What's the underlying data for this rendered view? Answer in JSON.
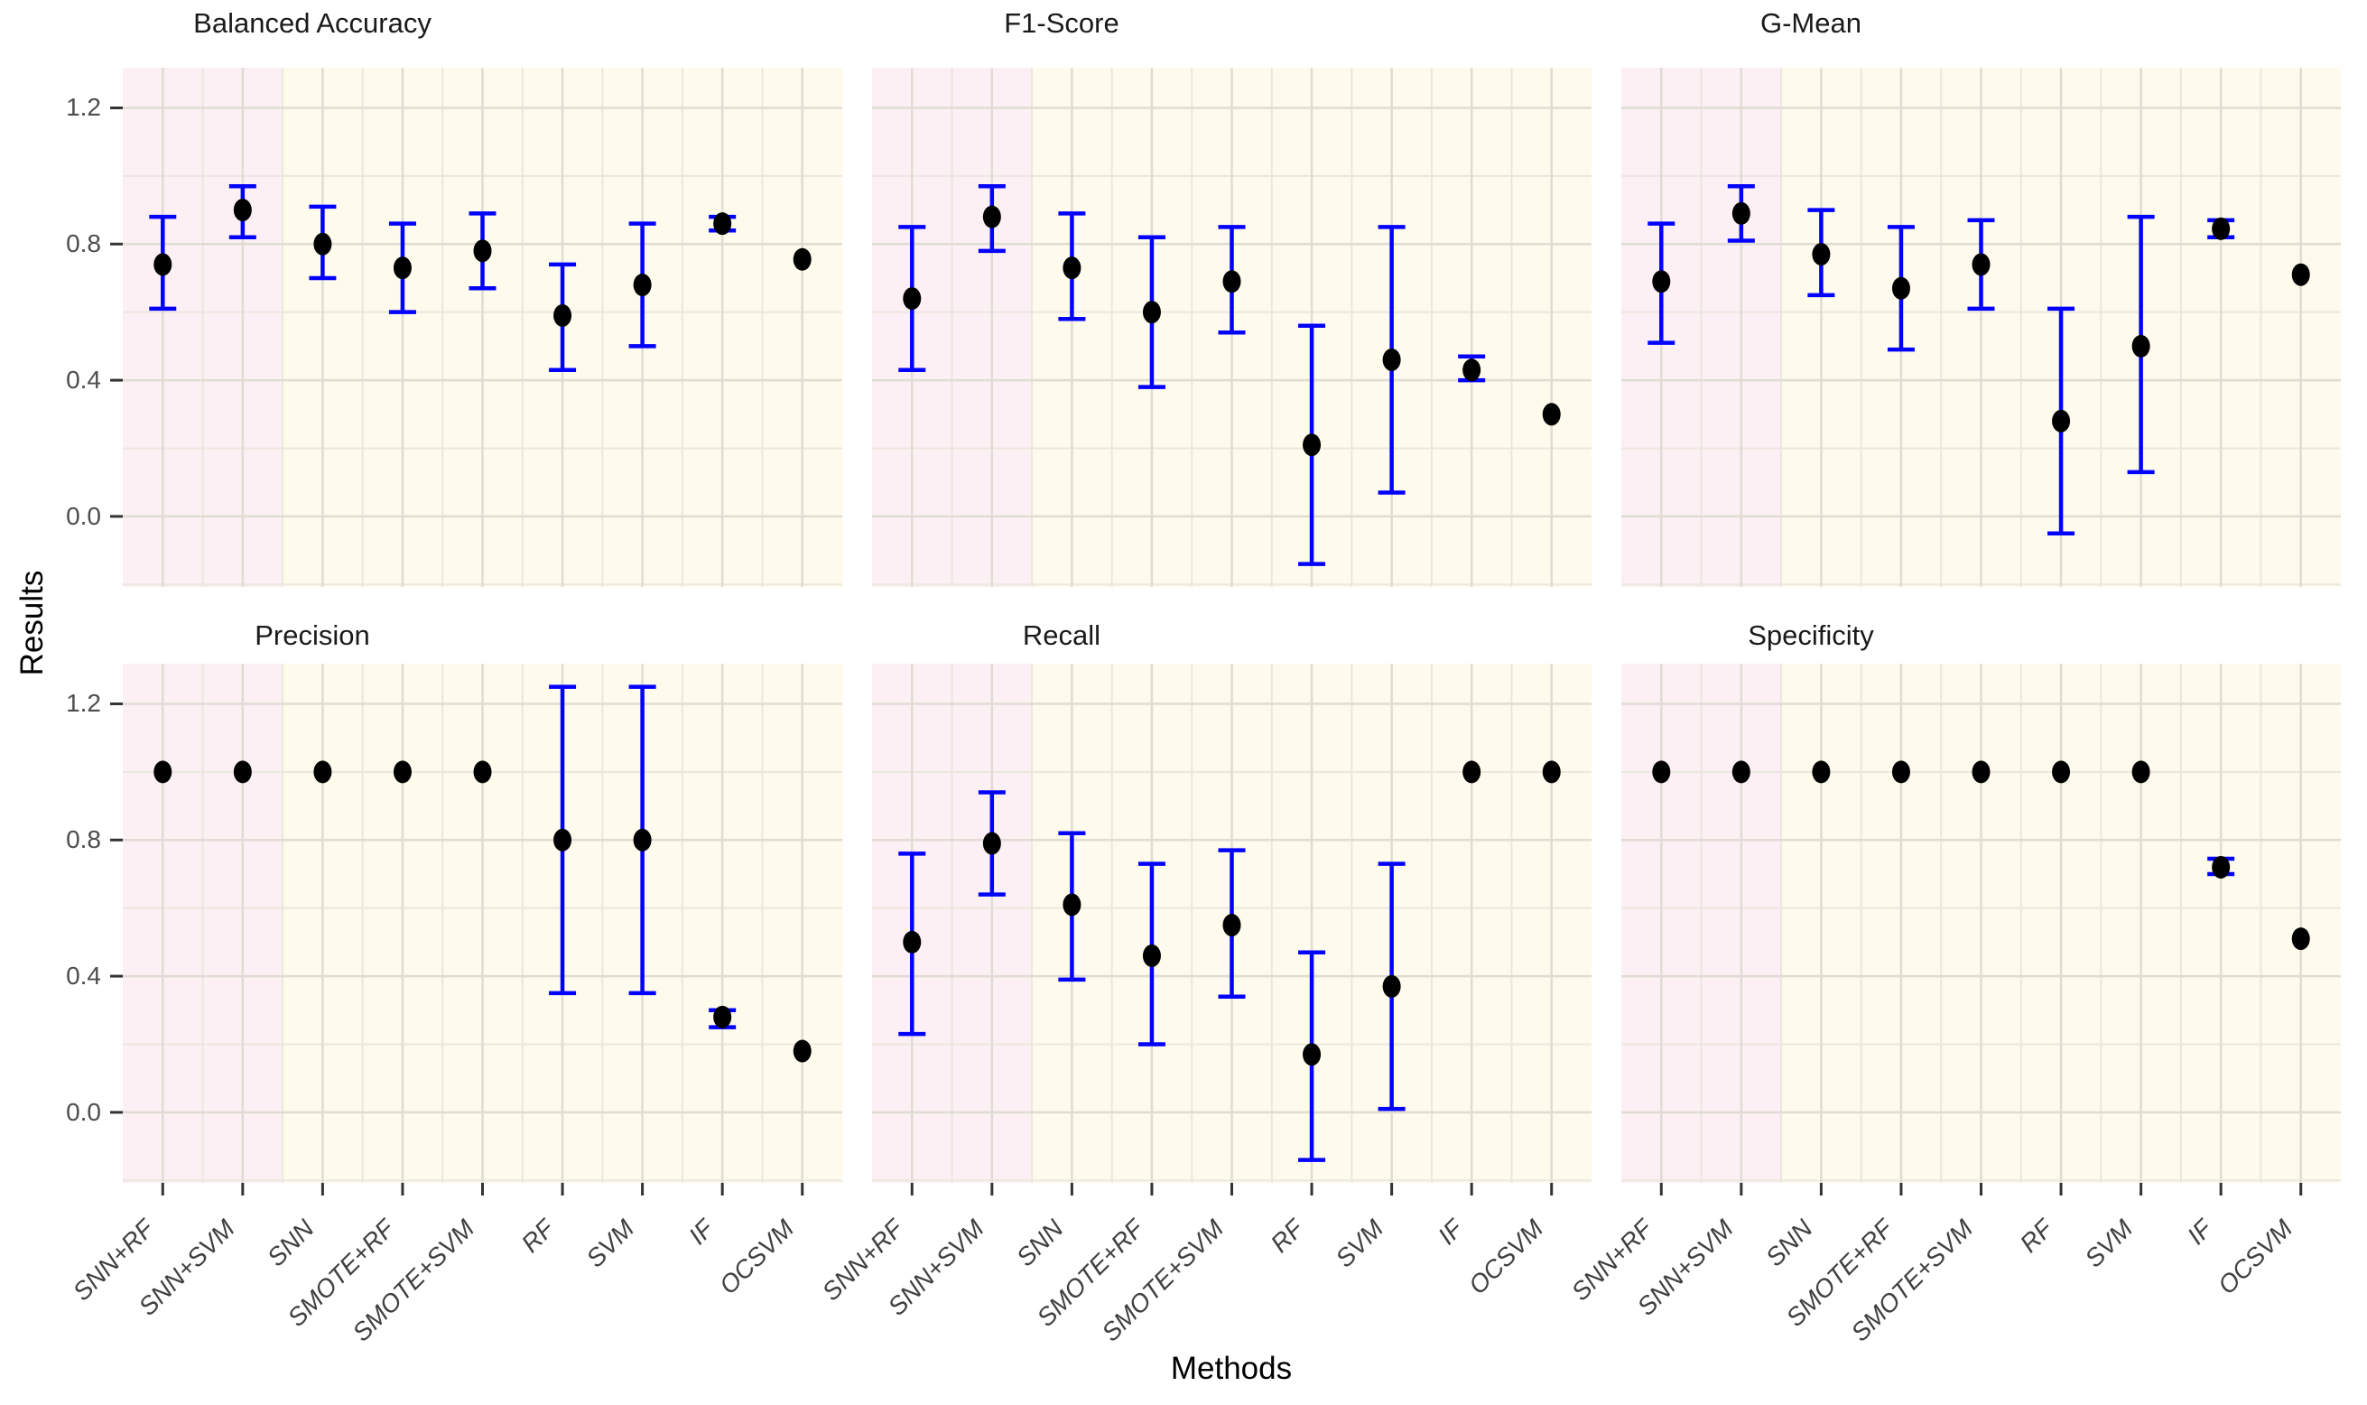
{
  "figure_type": "faceted-pointrange-plot",
  "labels": {
    "x": "Methods",
    "y": "Results"
  },
  "chart_data": {
    "type": "scatter",
    "subtype": "pointrange-errorbar",
    "xlabel": "Methods",
    "ylabel": "Results",
    "categories": [
      "SNN+RF",
      "SNN+SVM",
      "SNN",
      "SMOTE+RF",
      "SMOTE+SVM",
      "RF",
      "SVM",
      "IF",
      "OCSVM"
    ],
    "highlighted_categories": [
      "SNN+RF",
      "SNN+SVM"
    ],
    "ylim": [
      -0.21,
      1.32
    ],
    "yticks_major": [
      0.0,
      0.4,
      0.8,
      1.2
    ],
    "yticks_minor": [
      -0.2,
      0.2,
      0.6,
      1.0
    ],
    "ytick_labels": [
      "0.0",
      "0.4",
      "0.8",
      "1.2"
    ],
    "grid": "on",
    "legend_position": "none",
    "facets": [
      {
        "title": "Balanced Accuracy",
        "points": [
          {
            "method": "SNN+RF",
            "value": 0.74,
            "lo": 0.61,
            "hi": 0.88
          },
          {
            "method": "SNN+SVM",
            "value": 0.9,
            "lo": 0.82,
            "hi": 0.97
          },
          {
            "method": "SNN",
            "value": 0.8,
            "lo": 0.7,
            "hi": 0.91
          },
          {
            "method": "SMOTE+RF",
            "value": 0.73,
            "lo": 0.6,
            "hi": 0.86
          },
          {
            "method": "SMOTE+SVM",
            "value": 0.78,
            "lo": 0.67,
            "hi": 0.89
          },
          {
            "method": "RF",
            "value": 0.59,
            "lo": 0.43,
            "hi": 0.74
          },
          {
            "method": "SVM",
            "value": 0.68,
            "lo": 0.5,
            "hi": 0.86
          },
          {
            "method": "IF",
            "value": 0.86,
            "lo": 0.84,
            "hi": 0.88
          },
          {
            "method": "OCSVM",
            "value": 0.755,
            "lo": null,
            "hi": null
          }
        ]
      },
      {
        "title": "F1-Score",
        "points": [
          {
            "method": "SNN+RF",
            "value": 0.64,
            "lo": 0.43,
            "hi": 0.85
          },
          {
            "method": "SNN+SVM",
            "value": 0.88,
            "lo": 0.78,
            "hi": 0.97
          },
          {
            "method": "SNN",
            "value": 0.73,
            "lo": 0.58,
            "hi": 0.89
          },
          {
            "method": "SMOTE+RF",
            "value": 0.6,
            "lo": 0.38,
            "hi": 0.82
          },
          {
            "method": "SMOTE+SVM",
            "value": 0.69,
            "lo": 0.54,
            "hi": 0.85
          },
          {
            "method": "RF",
            "value": 0.21,
            "lo": -0.14,
            "hi": 0.56
          },
          {
            "method": "SVM",
            "value": 0.46,
            "lo": 0.07,
            "hi": 0.85
          },
          {
            "method": "IF",
            "value": 0.43,
            "lo": 0.4,
            "hi": 0.47
          },
          {
            "method": "OCSVM",
            "value": 0.3,
            "lo": null,
            "hi": null
          }
        ]
      },
      {
        "title": "G-Mean",
        "points": [
          {
            "method": "SNN+RF",
            "value": 0.69,
            "lo": 0.51,
            "hi": 0.86
          },
          {
            "method": "SNN+SVM",
            "value": 0.89,
            "lo": 0.81,
            "hi": 0.97
          },
          {
            "method": "SNN",
            "value": 0.77,
            "lo": 0.65,
            "hi": 0.9
          },
          {
            "method": "SMOTE+RF",
            "value": 0.67,
            "lo": 0.49,
            "hi": 0.85
          },
          {
            "method": "SMOTE+SVM",
            "value": 0.74,
            "lo": 0.61,
            "hi": 0.87
          },
          {
            "method": "RF",
            "value": 0.28,
            "lo": -0.05,
            "hi": 0.61
          },
          {
            "method": "SVM",
            "value": 0.5,
            "lo": 0.13,
            "hi": 0.88
          },
          {
            "method": "IF",
            "value": 0.845,
            "lo": 0.82,
            "hi": 0.87
          },
          {
            "method": "OCSVM",
            "value": 0.71,
            "lo": null,
            "hi": null
          }
        ]
      },
      {
        "title": "Precision",
        "points": [
          {
            "method": "SNN+RF",
            "value": 1.0,
            "lo": null,
            "hi": null
          },
          {
            "method": "SNN+SVM",
            "value": 1.0,
            "lo": null,
            "hi": null
          },
          {
            "method": "SNN",
            "value": 1.0,
            "lo": null,
            "hi": null
          },
          {
            "method": "SMOTE+RF",
            "value": 1.0,
            "lo": null,
            "hi": null
          },
          {
            "method": "SMOTE+SVM",
            "value": 1.0,
            "lo": null,
            "hi": null
          },
          {
            "method": "RF",
            "value": 0.8,
            "lo": 0.35,
            "hi": 1.25
          },
          {
            "method": "SVM",
            "value": 0.8,
            "lo": 0.35,
            "hi": 1.25
          },
          {
            "method": "IF",
            "value": 0.28,
            "lo": 0.25,
            "hi": 0.3
          },
          {
            "method": "OCSVM",
            "value": 0.18,
            "lo": null,
            "hi": null
          }
        ]
      },
      {
        "title": "Recall",
        "points": [
          {
            "method": "SNN+RF",
            "value": 0.5,
            "lo": 0.23,
            "hi": 0.76
          },
          {
            "method": "SNN+SVM",
            "value": 0.79,
            "lo": 0.64,
            "hi": 0.94
          },
          {
            "method": "SNN",
            "value": 0.61,
            "lo": 0.39,
            "hi": 0.82
          },
          {
            "method": "SMOTE+RF",
            "value": 0.46,
            "lo": 0.2,
            "hi": 0.73
          },
          {
            "method": "SMOTE+SVM",
            "value": 0.55,
            "lo": 0.34,
            "hi": 0.77
          },
          {
            "method": "RF",
            "value": 0.17,
            "lo": -0.14,
            "hi": 0.47
          },
          {
            "method": "SVM",
            "value": 0.37,
            "lo": 0.01,
            "hi": 0.73
          },
          {
            "method": "IF",
            "value": 1.0,
            "lo": null,
            "hi": null
          },
          {
            "method": "OCSVM",
            "value": 1.0,
            "lo": null,
            "hi": null
          }
        ]
      },
      {
        "title": "Specificity",
        "points": [
          {
            "method": "SNN+RF",
            "value": 1.0,
            "lo": null,
            "hi": null
          },
          {
            "method": "SNN+SVM",
            "value": 1.0,
            "lo": null,
            "hi": null
          },
          {
            "method": "SNN",
            "value": 1.0,
            "lo": null,
            "hi": null
          },
          {
            "method": "SMOTE+RF",
            "value": 1.0,
            "lo": null,
            "hi": null
          },
          {
            "method": "SMOTE+SVM",
            "value": 1.0,
            "lo": null,
            "hi": null
          },
          {
            "method": "RF",
            "value": 1.0,
            "lo": null,
            "hi": null
          },
          {
            "method": "SVM",
            "value": 1.0,
            "lo": null,
            "hi": null
          },
          {
            "method": "IF",
            "value": 0.72,
            "lo": 0.7,
            "hi": 0.745
          },
          {
            "method": "OCSVM",
            "value": 0.51,
            "lo": null,
            "hi": null
          }
        ]
      }
    ]
  },
  "colors": {
    "background": "#ffffff",
    "band_highlight_pink": "#fdf0f5",
    "band_default_ivory": "#fefbec",
    "grid_major": "#dfdcd3",
    "grid_minor": "#eae7de",
    "errorbar_blue": "#0000ff",
    "point_black": "#000000",
    "tick_text": "#4d4d4d",
    "title_text": "#1a1a1a",
    "tick_mark": "#333333"
  }
}
